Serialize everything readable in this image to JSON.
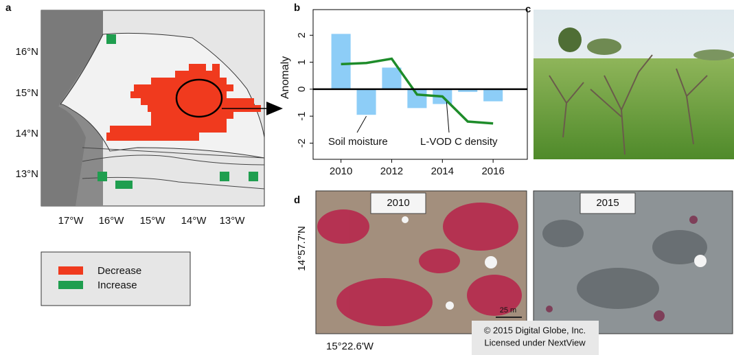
{
  "panels": {
    "a": "a",
    "b": "b",
    "c": "c",
    "d": "d"
  },
  "map": {
    "lat_labels": [
      "16°N",
      "15°N",
      "14°N",
      "13°N"
    ],
    "lon_labels": [
      "17°W",
      "16°W",
      "15°W",
      "14°W",
      "13°W"
    ],
    "legend": [
      {
        "label": "Decrease",
        "color": "#f03a1e"
      },
      {
        "label": "Increase",
        "color": "#1f9e4f"
      }
    ]
  },
  "imagery": {
    "left_year": "2010",
    "right_year": "2015",
    "lat": "14°57.7'N",
    "lon": "15°22.6'W",
    "scale": "25 m",
    "credit": [
      "© 2015 Digital Globe, Inc.",
      "Licensed under NextView"
    ]
  },
  "chart_data": {
    "type": "combo",
    "y_label": "Anomaly",
    "x": [
      2010,
      2011,
      2012,
      2013,
      2014,
      2015,
      2016
    ],
    "series": [
      {
        "name": "Soil moisture",
        "type": "bar",
        "color": "#8dcdf7",
        "values": [
          2.05,
          -0.95,
          0.8,
          -0.7,
          -0.55,
          -0.1,
          -0.45
        ]
      },
      {
        "name": "L-VOD C density",
        "type": "line",
        "color": "#1e8c2a",
        "values": [
          0.93,
          0.97,
          1.13,
          -0.2,
          -0.27,
          -1.2,
          -1.27
        ]
      }
    ],
    "xlim": [
      2008.9,
      2017.35
    ],
    "xticks": [
      2010,
      2012,
      2014,
      2016
    ],
    "ylim": [
      -2.6,
      2.95
    ],
    "yticks": [
      -2,
      -1,
      0,
      1,
      2
    ]
  }
}
